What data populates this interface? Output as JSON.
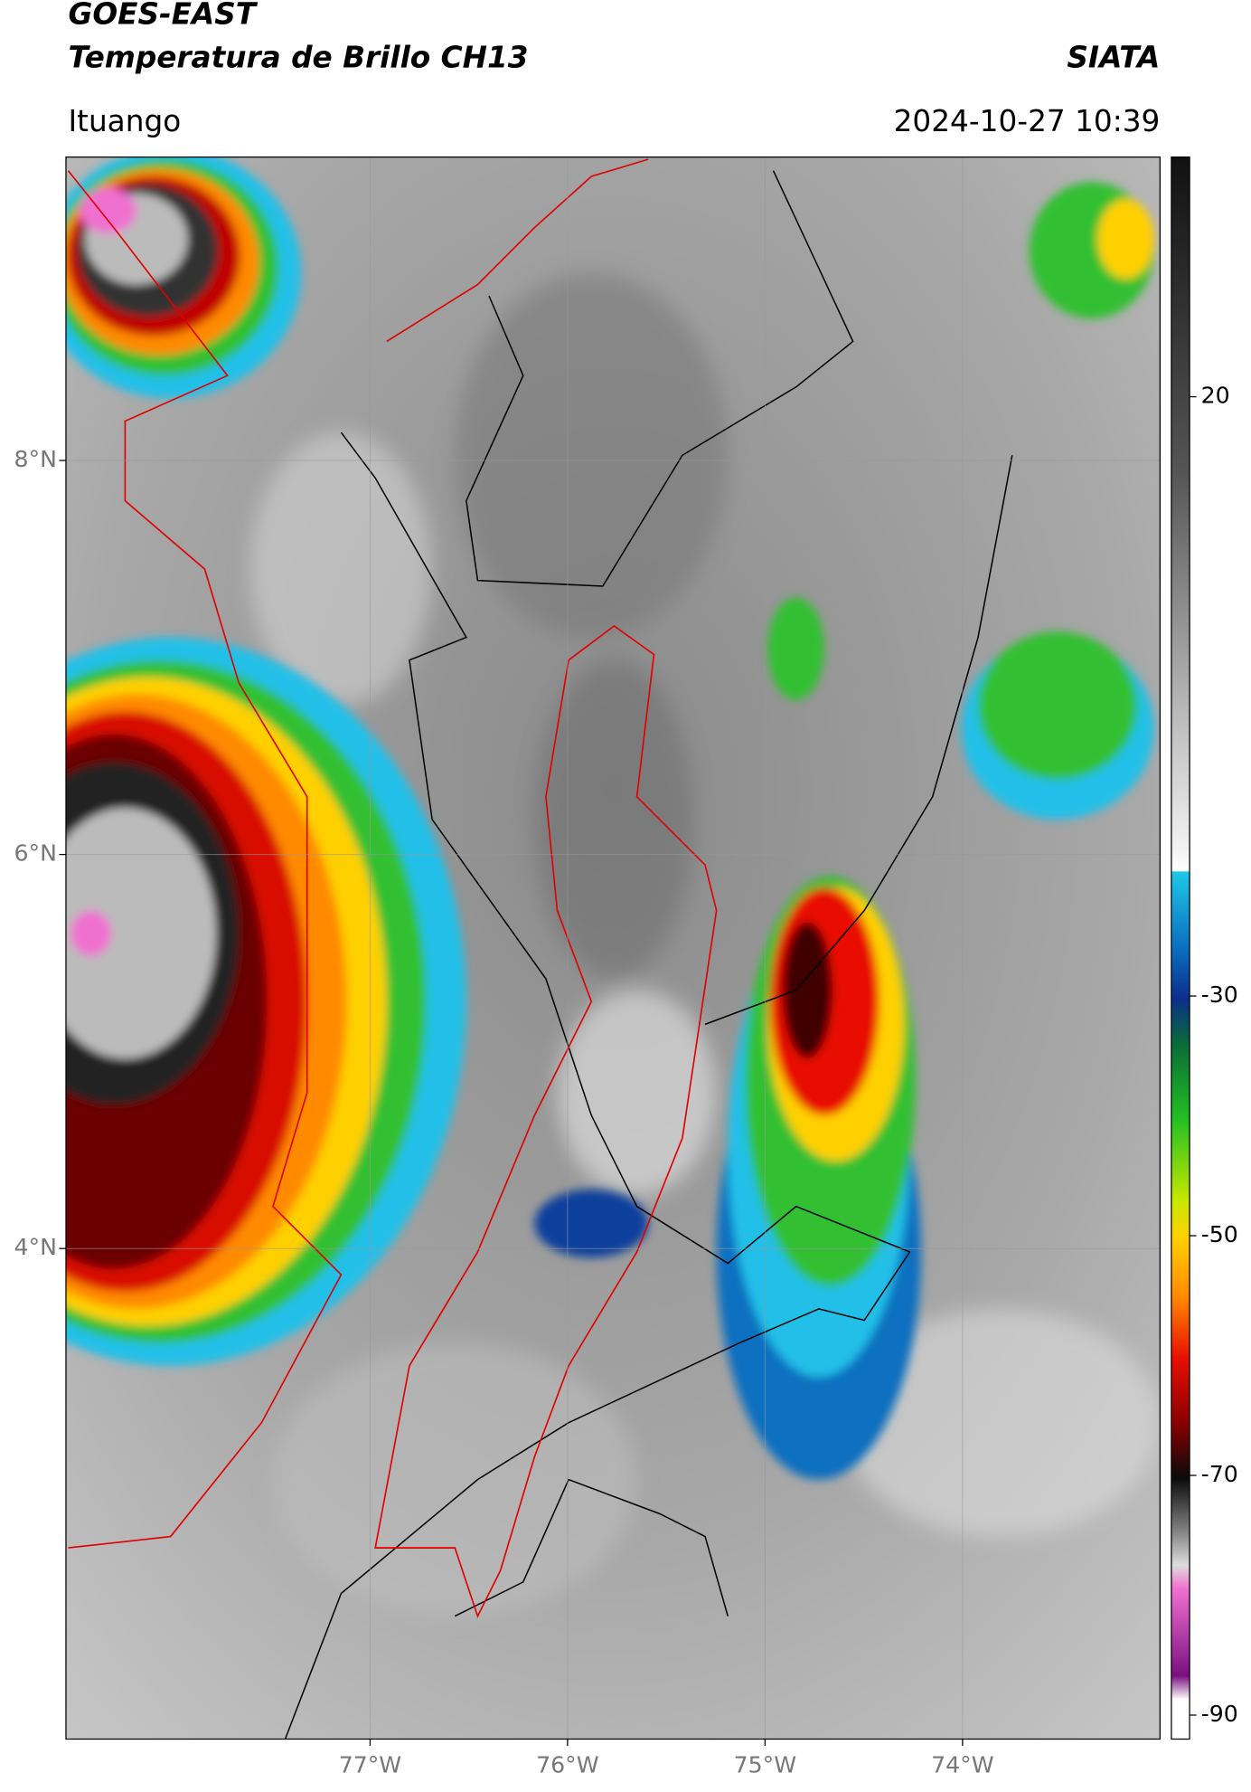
{
  "header": {
    "title": "GOES-EAST",
    "subtitle": "Temperatura de Brillo CH13",
    "source": "SIATA",
    "location": "Ituango",
    "datetime": "2024-10-27 10:39"
  },
  "map": {
    "lonlim": [
      -78.54,
      -73.0
    ],
    "latlim": [
      1.51,
      9.54
    ],
    "lonticks": [
      {
        "value": -77,
        "label": "77°W"
      },
      {
        "value": -76,
        "label": "76°W"
      },
      {
        "value": -75,
        "label": "75°W"
      },
      {
        "value": -74,
        "label": "74°W"
      }
    ],
    "latticks": [
      {
        "value": 8,
        "label": "8°N"
      },
      {
        "value": 6,
        "label": "6°N"
      },
      {
        "value": 4,
        "label": "4°N"
      }
    ]
  },
  "colorbar": {
    "lim": [
      -92,
      40
    ],
    "ticks": [
      20,
      -30,
      -50,
      -70,
      -90
    ]
  }
}
